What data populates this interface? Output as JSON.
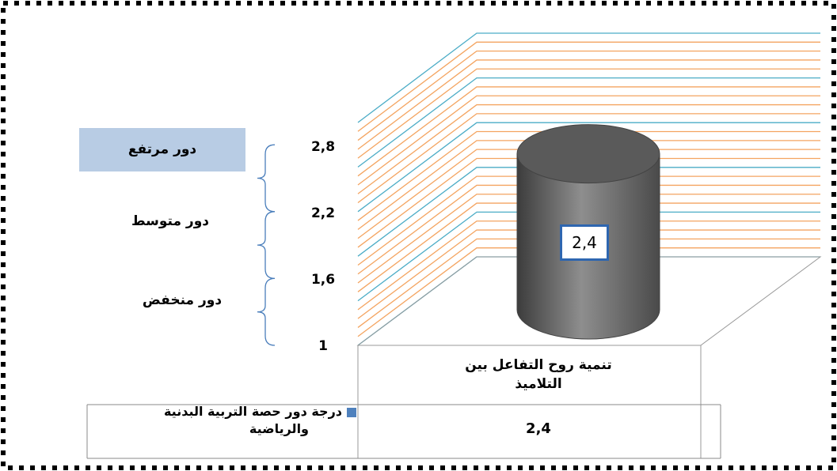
{
  "chart_data": {
    "type": "bar",
    "bar_shape": "3d-cylinder",
    "categories": [
      "تنمية روح التفاعل بين التلاميذ"
    ],
    "series": [
      {
        "name": "درجة دور حصة التربية البدنية والرياضية",
        "values": [
          2.4
        ],
        "color": "#4f81bd"
      }
    ],
    "data_labels": [
      "2,4"
    ],
    "y_ticks": [
      {
        "value": 1,
        "label": "1"
      },
      {
        "value": 1.6,
        "label": "1,6"
      },
      {
        "value": 2.2,
        "label": "2,2"
      },
      {
        "value": 2.8,
        "label": "2,8"
      }
    ],
    "ylim": [
      1,
      3
    ],
    "grid": true,
    "legend_position": "bottom-left",
    "bands": [
      {
        "label": "دور منخفض",
        "from": 1,
        "to": 1.6
      },
      {
        "label": "دور  متوسط",
        "from": 1.6,
        "to": 2.2
      },
      {
        "label": "دور مرتفع",
        "from": 2.2,
        "to": 2.8
      }
    ],
    "category_label_lines": [
      "تنمية روح التفاعل بين",
      "التلاميذ"
    ],
    "legend_lines": [
      "درجة  دور حصة  التربية البدنية",
      "والرياضية"
    ],
    "table_value": "2,4"
  },
  "colors": {
    "grid_orange": "#f4a460",
    "grid_blue": "#4bacc6",
    "cylinder": "#6b6b6b",
    "band_highlight": "#b8cce4",
    "legend_swatch": "#4f81bd"
  }
}
